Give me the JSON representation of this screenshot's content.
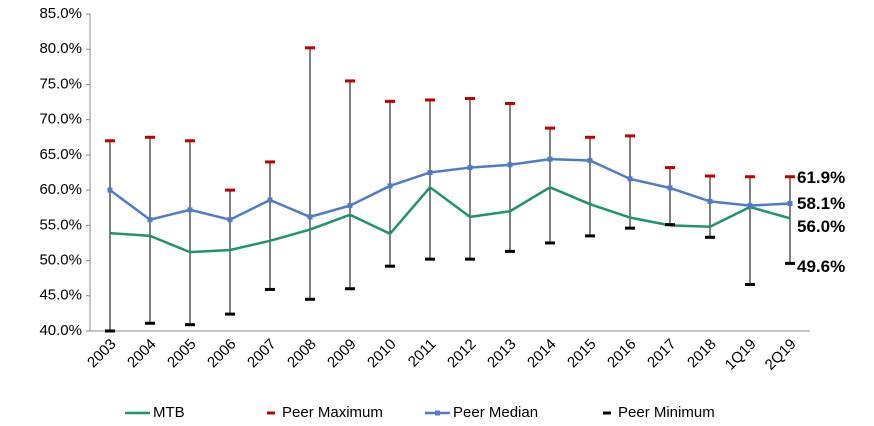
{
  "chart_data": {
    "type": "line",
    "categories": [
      "2003",
      "2004",
      "2005",
      "2006",
      "2007",
      "2008",
      "2009",
      "2010",
      "2011",
      "2012",
      "2013",
      "2014",
      "2015",
      "2016",
      "2017",
      "2018",
      "1Q19",
      "2Q19"
    ],
    "ylim": [
      40,
      85
    ],
    "yticks": [
      {
        "value": 40,
        "label": "40.0%"
      },
      {
        "value": 45,
        "label": "45.0%"
      },
      {
        "value": 50,
        "label": "50.0%"
      },
      {
        "value": 55,
        "label": "55.0%"
      },
      {
        "value": 60,
        "label": "60.0%"
      },
      {
        "value": 65,
        "label": "65.0%"
      },
      {
        "value": 70,
        "label": "70.0%"
      },
      {
        "value": 75,
        "label": "75.0%"
      },
      {
        "value": 80,
        "label": "80.0%"
      },
      {
        "value": 85,
        "label": "85.0%"
      }
    ],
    "range_lines": true,
    "series": [
      {
        "name": "MTB",
        "color": "#1f9272",
        "mark": "line",
        "markers": false,
        "values": [
          53.9,
          53.5,
          51.2,
          51.5,
          52.8,
          54.4,
          56.5,
          53.8,
          60.4,
          56.2,
          57.0,
          60.4,
          58.0,
          56.1,
          55.0,
          54.8,
          57.6,
          56.0
        ],
        "value_labels": [
          null,
          null,
          null,
          null,
          null,
          null,
          null,
          null,
          null,
          null,
          null,
          null,
          null,
          null,
          null,
          null,
          null,
          "56.0%"
        ]
      },
      {
        "name": "Peer Maximum",
        "color": "#c00000",
        "mark": "dash",
        "markers": false,
        "values": [
          67.0,
          67.5,
          67.0,
          60.0,
          64.0,
          80.2,
          75.5,
          72.6,
          72.8,
          73.0,
          72.3,
          68.8,
          67.5,
          67.7,
          63.2,
          62.0,
          61.9,
          61.9
        ],
        "value_labels": [
          null,
          null,
          null,
          null,
          null,
          null,
          null,
          null,
          null,
          null,
          null,
          null,
          null,
          null,
          null,
          null,
          null,
          "61.9%"
        ]
      },
      {
        "name": "Peer Median",
        "color": "#4f7cc9",
        "mark": "line",
        "markers": true,
        "values": [
          60.0,
          55.8,
          57.2,
          55.8,
          58.6,
          56.2,
          57.8,
          60.6,
          62.5,
          63.2,
          63.6,
          64.4,
          64.2,
          61.6,
          60.3,
          58.4,
          57.8,
          58.1
        ],
        "value_labels": [
          null,
          null,
          null,
          null,
          null,
          null,
          null,
          null,
          null,
          null,
          null,
          null,
          null,
          null,
          null,
          null,
          null,
          "58.1%"
        ]
      },
      {
        "name": "Peer Minimum",
        "color": "#000000",
        "mark": "dash",
        "markers": false,
        "values": [
          40.0,
          41.1,
          40.9,
          42.4,
          45.9,
          44.5,
          46.0,
          49.2,
          50.2,
          50.2,
          51.3,
          52.5,
          53.5,
          54.6,
          55.1,
          53.3,
          46.6,
          49.6
        ],
        "value_labels": [
          null,
          null,
          null,
          null,
          null,
          null,
          null,
          null,
          null,
          null,
          null,
          null,
          null,
          null,
          null,
          null,
          null,
          "49.6%"
        ]
      }
    ]
  }
}
